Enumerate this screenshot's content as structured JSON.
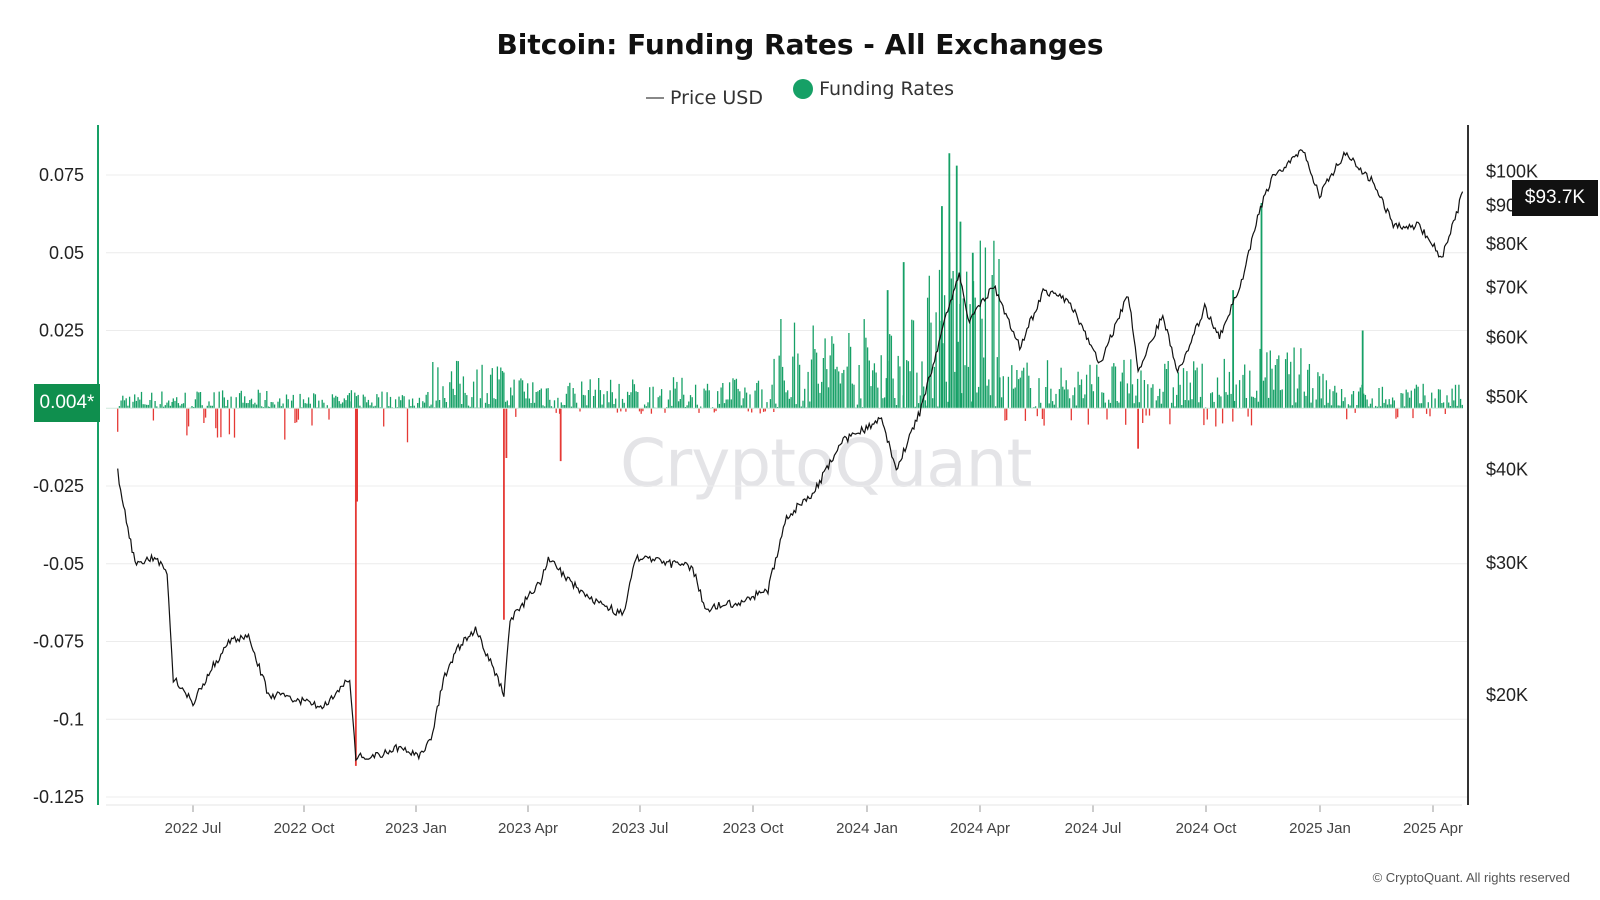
{
  "chart_data": {
    "type": "bar",
    "title": "Bitcoin: Funding Rates - All Exchanges",
    "legend": [
      {
        "name": "Price USD",
        "kind": "line",
        "color": "#888888"
      },
      {
        "name": "Funding Rates",
        "kind": "dot",
        "color": "#16a066"
      }
    ],
    "legend_placement": "top-center",
    "x_ticks": [
      "2022 Jul",
      "2022 Oct",
      "2023 Jan",
      "2023 Apr",
      "2023 Jul",
      "2023 Oct",
      "2024 Jan",
      "2024 Apr",
      "2024 Jul",
      "2024 Oct",
      "2025 Jan",
      "2025 Apr"
    ],
    "y_left": {
      "ticks": [
        "0.075",
        "0.05",
        "0.025",
        "0",
        "-0.025",
        "-0.05",
        "-0.075",
        "-0.1",
        "-0.125"
      ],
      "range": [
        -0.125,
        0.075
      ]
    },
    "y_right": {
      "ticks": [
        "$100K",
        "$90K",
        "$80K",
        "$70K",
        "$60K",
        "$50K",
        "$40K",
        "$30K",
        "$20K"
      ],
      "scale": "log",
      "range": [
        17000,
        100000
      ]
    },
    "current_price_label": "$93.7K",
    "current_rate_label": "0.004*",
    "grid": "horizontal",
    "colors": {
      "positive": "#16a066",
      "negative": "#e53935",
      "price": "#111111",
      "axis": "#16a066"
    },
    "series": [
      {
        "name": "Price USD",
        "type": "line",
        "points": [
          [
            "2022-05-01",
            39500
          ],
          [
            "2022-05-08",
            34000
          ],
          [
            "2022-05-15",
            30000
          ],
          [
            "2022-06-01",
            30500
          ],
          [
            "2022-06-10",
            29000
          ],
          [
            "2022-06-15",
            21000
          ],
          [
            "2022-06-20",
            20500
          ],
          [
            "2022-07-01",
            19500
          ],
          [
            "2022-07-15",
            21500
          ],
          [
            "2022-07-31",
            23500
          ],
          [
            "2022-08-15",
            24000
          ],
          [
            "2022-08-31",
            20000
          ],
          [
            "2022-09-15",
            19800
          ],
          [
            "2022-09-30",
            19500
          ],
          [
            "2022-10-15",
            19200
          ],
          [
            "2022-10-31",
            20500
          ],
          [
            "2022-11-05",
            21000
          ],
          [
            "2022-11-10",
            16500
          ],
          [
            "2022-11-25",
            16500
          ],
          [
            "2022-12-15",
            17000
          ],
          [
            "2022-12-31",
            16600
          ],
          [
            "2023-01-10",
            17300
          ],
          [
            "2023-01-20",
            21000
          ],
          [
            "2023-02-01",
            23000
          ],
          [
            "2023-02-15",
            24500
          ],
          [
            "2023-03-10",
            20000
          ],
          [
            "2023-03-15",
            25000
          ],
          [
            "2023-04-10",
            28500
          ],
          [
            "2023-04-15",
            30300
          ],
          [
            "2023-05-15",
            27000
          ],
          [
            "2023-06-15",
            25500
          ],
          [
            "2023-06-25",
            30500
          ],
          [
            "2023-07-15",
            30000
          ],
          [
            "2023-08-10",
            29500
          ],
          [
            "2023-08-20",
            26000
          ],
          [
            "2023-09-15",
            26500
          ],
          [
            "2023-10-10",
            27500
          ],
          [
            "2023-10-25",
            34500
          ],
          [
            "2023-11-15",
            37000
          ],
          [
            "2023-12-10",
            43500
          ],
          [
            "2024-01-10",
            46500
          ],
          [
            "2024-01-22",
            40000
          ],
          [
            "2024-02-10",
            47500
          ],
          [
            "2024-02-28",
            61000
          ],
          [
            "2024-03-13",
            73000
          ],
          [
            "2024-03-20",
            63000
          ],
          [
            "2024-04-10",
            70000
          ],
          [
            "2024-05-01",
            58000
          ],
          [
            "2024-05-20",
            69000
          ],
          [
            "2024-06-10",
            67000
          ],
          [
            "2024-07-05",
            55000
          ],
          [
            "2024-07-28",
            68500
          ],
          [
            "2024-08-05",
            54000
          ],
          [
            "2024-08-25",
            64000
          ],
          [
            "2024-09-06",
            53500
          ],
          [
            "2024-09-28",
            65500
          ],
          [
            "2024-10-10",
            60000
          ],
          [
            "2024-10-29",
            72000
          ],
          [
            "2024-11-11",
            88000
          ],
          [
            "2024-11-22",
            98500
          ],
          [
            "2024-12-17",
            106000
          ],
          [
            "2024-12-30",
            92500
          ],
          [
            "2025-01-20",
            106000
          ],
          [
            "2025-02-10",
            97000
          ],
          [
            "2025-03-01",
            84000
          ],
          [
            "2025-03-20",
            84500
          ],
          [
            "2025-04-08",
            76500
          ],
          [
            "2025-04-20",
            87000
          ],
          [
            "2025-04-25",
            93700
          ]
        ]
      },
      {
        "name": "Funding Rates",
        "type": "bar",
        "bands": [
          {
            "from": "2022-05-01",
            "to": "2022-06-15",
            "low": -0.008,
            "high": 0.006
          },
          {
            "from": "2022-06-15",
            "to": "2022-09-01",
            "low": -0.01,
            "high": 0.006
          },
          {
            "from": "2022-09-01",
            "to": "2022-11-05",
            "low": -0.012,
            "high": 0.005
          },
          {
            "from": "2022-11-05",
            "to": "2023-01-10",
            "low": -0.015,
            "high": 0.006
          },
          {
            "from": "2023-01-10",
            "to": "2023-03-10",
            "low": 0.0,
            "high": 0.016
          },
          {
            "from": "2023-03-10",
            "to": "2023-04-20",
            "low": -0.006,
            "high": 0.012
          },
          {
            "from": "2023-04-20",
            "to": "2023-10-15",
            "low": -0.002,
            "high": 0.01
          },
          {
            "from": "2023-10-15",
            "to": "2024-02-15",
            "low": 0.0,
            "high": 0.03
          },
          {
            "from": "2024-02-15",
            "to": "2024-04-15",
            "low": 0.0,
            "high": 0.055
          },
          {
            "from": "2024-04-15",
            "to": "2024-11-05",
            "low": -0.006,
            "high": 0.016
          },
          {
            "from": "2024-11-05",
            "to": "2025-01-10",
            "low": 0.0,
            "high": 0.02
          },
          {
            "from": "2025-01-10",
            "to": "2025-04-25",
            "low": -0.004,
            "high": 0.008
          }
        ],
        "spikes": [
          {
            "date": "2022-11-10",
            "value": -0.115
          },
          {
            "date": "2022-11-11",
            "value": -0.03
          },
          {
            "date": "2023-03-10",
            "value": -0.068
          },
          {
            "date": "2023-03-12",
            "value": -0.016
          },
          {
            "date": "2023-04-25",
            "value": -0.017
          },
          {
            "date": "2024-02-28",
            "value": 0.065
          },
          {
            "date": "2024-03-05",
            "value": 0.082
          },
          {
            "date": "2024-03-11",
            "value": 0.078
          },
          {
            "date": "2024-03-14",
            "value": 0.06
          },
          {
            "date": "2024-03-24",
            "value": 0.05
          },
          {
            "date": "2024-01-28",
            "value": 0.047
          },
          {
            "date": "2024-01-15",
            "value": 0.038
          },
          {
            "date": "2024-11-13",
            "value": 0.066
          },
          {
            "date": "2024-10-21",
            "value": 0.038
          },
          {
            "date": "2025-02-03",
            "value": 0.025
          },
          {
            "date": "2024-08-05",
            "value": -0.013
          }
        ]
      }
    ],
    "watermark": "CryptoQuant",
    "copyright": "© CryptoQuant. All rights reserved"
  }
}
